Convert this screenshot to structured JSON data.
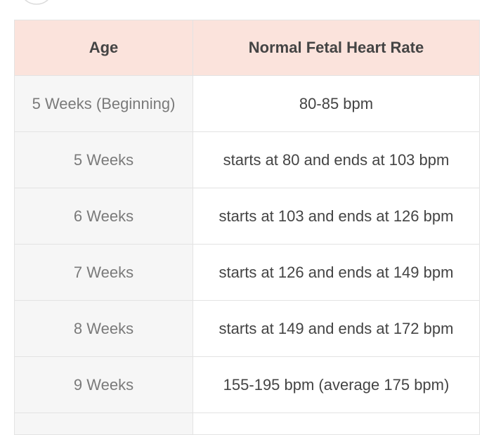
{
  "table": {
    "header": [
      "Age",
      "Normal Fetal Heart Rate"
    ],
    "rows": [
      [
        "5 Weeks (Beginning)",
        "80-85 bpm"
      ],
      [
        "5 Weeks",
        "starts at 80 and ends at 103 bpm"
      ],
      [
        "6 Weeks",
        "starts at 103 and ends at 126 bpm"
      ],
      [
        "7 Weeks",
        "starts at 126 and ends at 149 bpm"
      ],
      [
        "8 Weeks",
        "starts at 149 and ends at 172 bpm"
      ],
      [
        "9 Weeks",
        "155-195 bpm (average 175 bpm)"
      ]
    ]
  }
}
